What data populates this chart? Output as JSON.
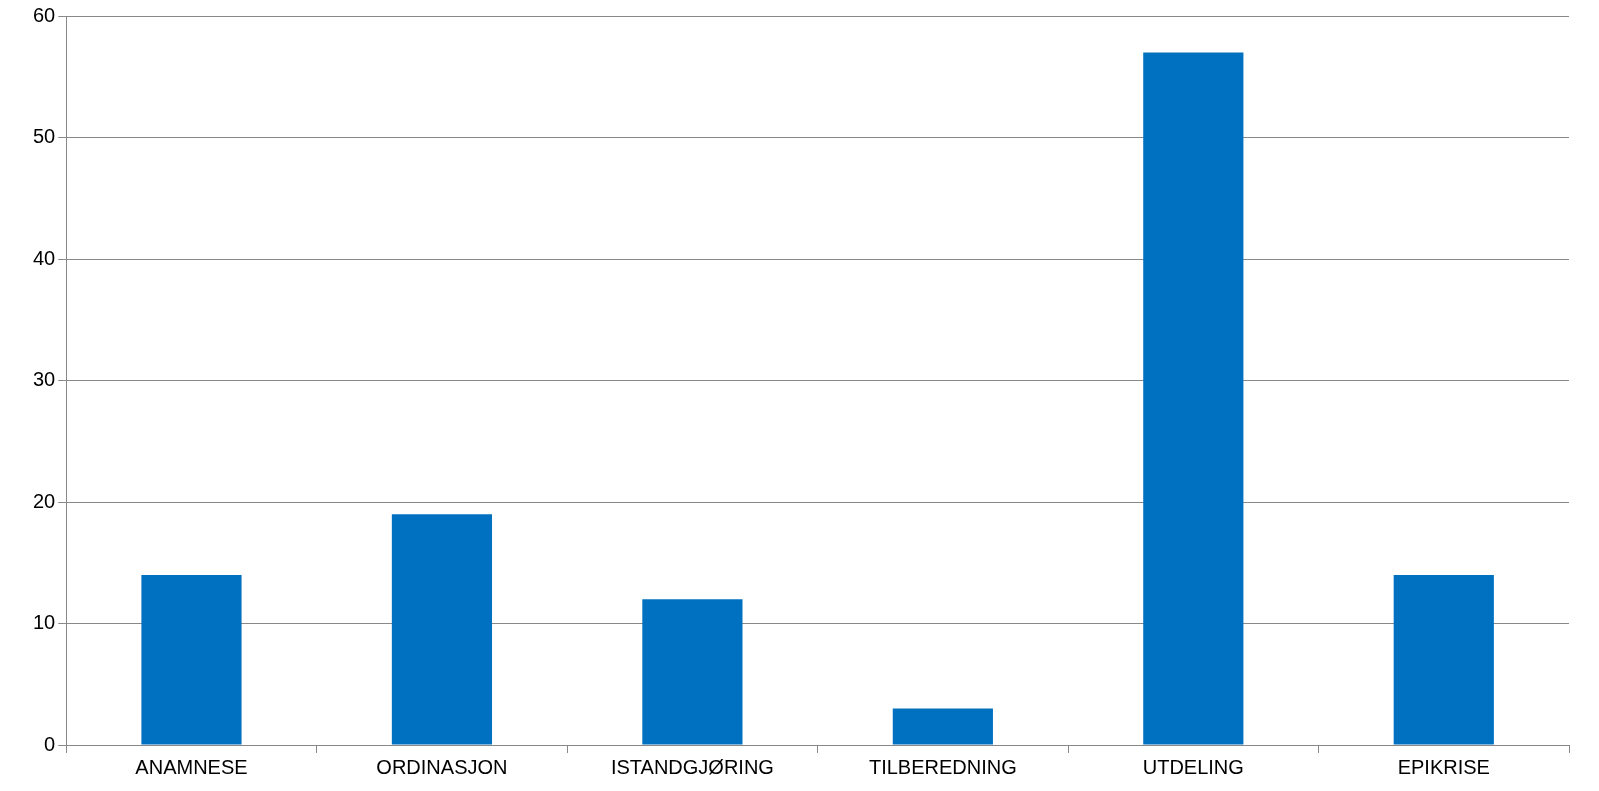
{
  "chart_data": {
    "type": "bar",
    "categories": [
      "ANAMNESE",
      "ORDINASJON",
      "ISTANDGJØRING",
      "TILBEREDNING",
      "UTDELING",
      "EPIKRISE"
    ],
    "values": [
      14,
      19,
      12,
      3,
      57,
      14
    ],
    "color": "#0070c0",
    "ylim": [
      0,
      60
    ],
    "yticks": [
      0,
      10,
      20,
      30,
      40,
      50,
      60
    ],
    "grid": "y"
  }
}
